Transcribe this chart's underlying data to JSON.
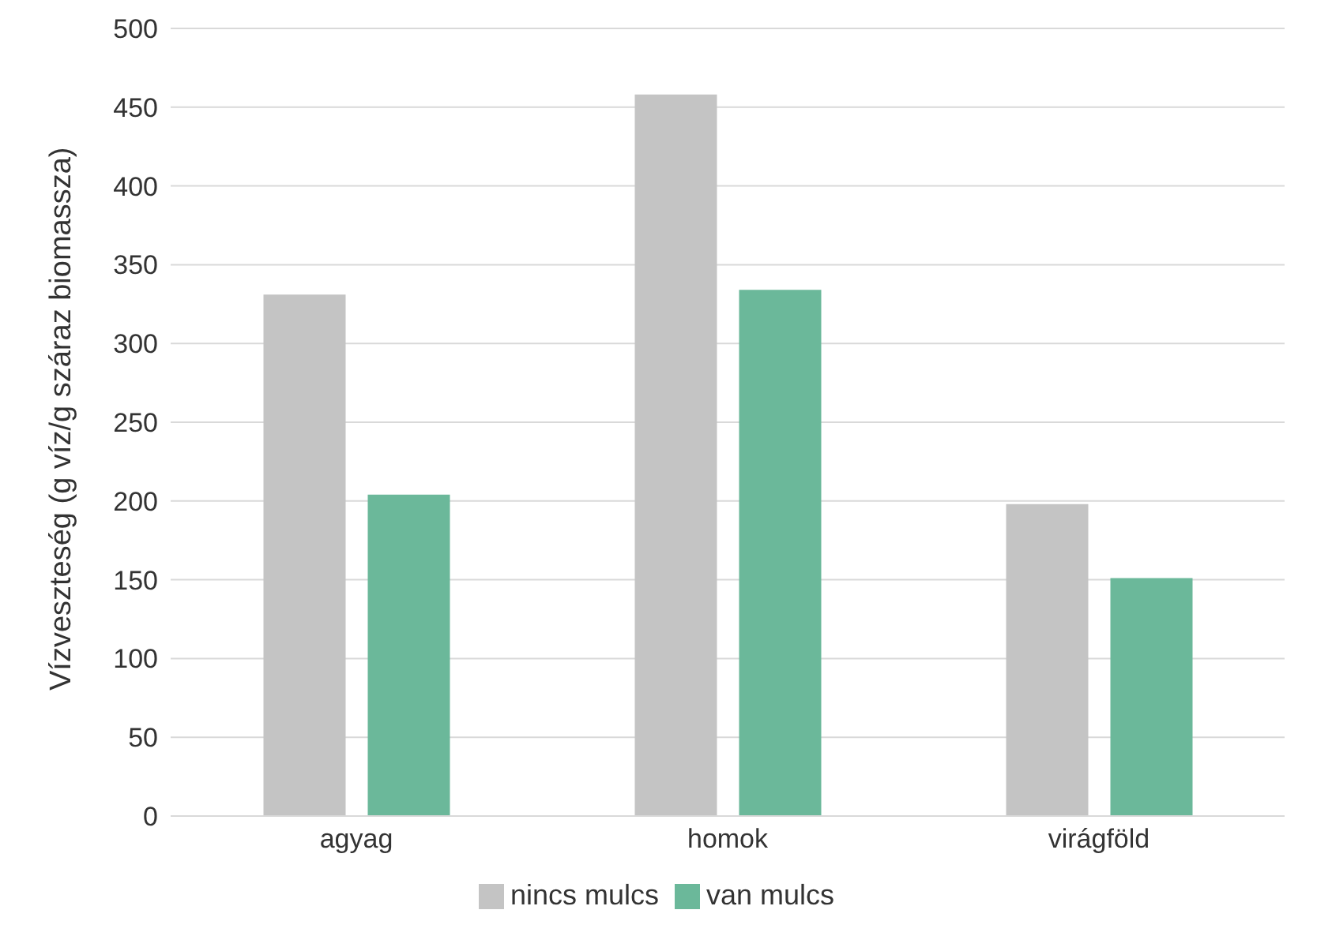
{
  "chart_data": {
    "type": "bar",
    "ylabel": "Vízveszteség (g víz/g száraz biomassza)",
    "categories": [
      "agyag",
      "homok",
      "virágföld"
    ],
    "series": [
      {
        "name": "nincs mulcs",
        "color": "#c4c4c4",
        "values": [
          331,
          458,
          198
        ]
      },
      {
        "name": "van mulcs",
        "color": "#6bb89a",
        "values": [
          204,
          334,
          151
        ]
      }
    ],
    "ylim": [
      0,
      500
    ],
    "yticks": [
      0,
      50,
      100,
      150,
      200,
      250,
      300,
      350,
      400,
      450,
      500
    ],
    "grid": "y",
    "legend": "bottom"
  }
}
